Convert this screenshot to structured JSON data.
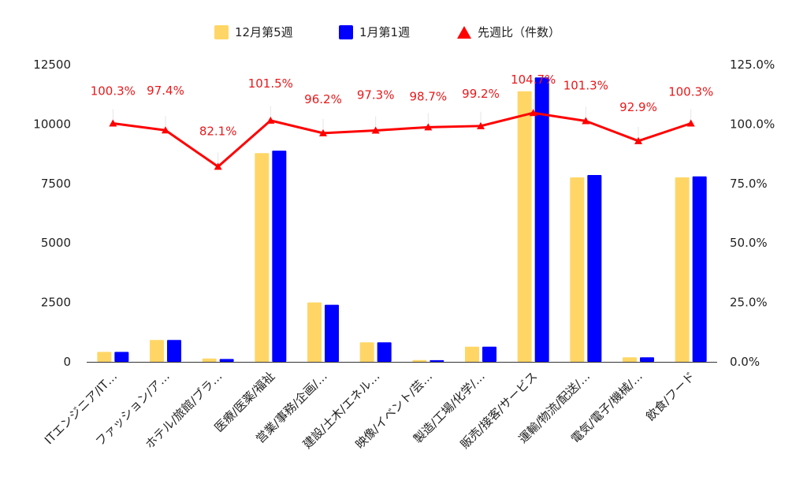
{
  "chart_data": {
    "type": "bar",
    "categories": [
      "ITエンジニア/IT…",
      "ファッション/ア…",
      "ホテル/旅館/ブラ…",
      "医療/医薬/福祉",
      "営業/事務/企画/…",
      "建設/土木/エネル…",
      "映像/イベント/芸…",
      "製造/工場/化学/…",
      "販売/接客/サービス",
      "運輸/物流/配送/…",
      "電気/電子/機械/…",
      "飲食/フード"
    ],
    "series": [
      {
        "name": "12月第5週",
        "color": "#ffd666",
        "values": [
          420,
          920,
          140,
          8780,
          2500,
          820,
          75,
          640,
          11380,
          7760,
          190,
          7760
        ]
      },
      {
        "name": "1月第1週",
        "color": "#0000ff",
        "values": [
          420,
          920,
          120,
          8880,
          2400,
          820,
          70,
          640,
          11960,
          7860,
          190,
          7800
        ]
      }
    ],
    "line_series": {
      "name": "先週比（件数）",
      "color": "#ff0000",
      "values": [
        100.3,
        97.4,
        82.1,
        101.5,
        96.2,
        97.3,
        98.7,
        99.2,
        104.7,
        101.3,
        92.9,
        100.3
      ],
      "labels": [
        "100.3%",
        "97.4%",
        "82.1%",
        "101.5%",
        "96.2%",
        "97.3%",
        "98.7%",
        "99.2%",
        "104.7%",
        "101.3%",
        "92.9%",
        "100.3%"
      ]
    },
    "y_left": {
      "ylim": [
        0,
        12500
      ],
      "ticks": [
        0,
        2500,
        5000,
        7500,
        10000,
        12500
      ],
      "tick_labels": [
        "0",
        "2500",
        "5000",
        "7500",
        "10000",
        "12500"
      ]
    },
    "y_right": {
      "ylim": [
        0,
        125
      ],
      "ticks": [
        0,
        25,
        50,
        75,
        100,
        125
      ],
      "tick_labels": [
        "0.0%",
        "25.0%",
        "50.0%",
        "75.0%",
        "100.0%",
        "125.0%"
      ]
    },
    "legend_position": "top-center",
    "grid": false
  }
}
